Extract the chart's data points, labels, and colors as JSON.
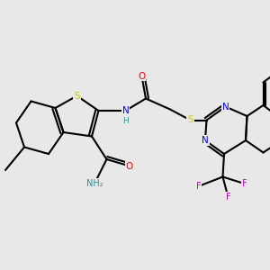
{
  "background_color": "#e8e8e8",
  "bond_color": "#000000",
  "bond_width": 1.5,
  "atom_colors": {
    "S": "#cccc00",
    "N": "#0000ff",
    "O": "#ff0000",
    "F": "#cc00cc",
    "C": "#000000",
    "H": "#2f8f8f",
    "NH2": "#2f8f8f"
  },
  "font_size": 7.5,
  "fig_width": 3.0,
  "fig_height": 3.0,
  "dpi": 100
}
